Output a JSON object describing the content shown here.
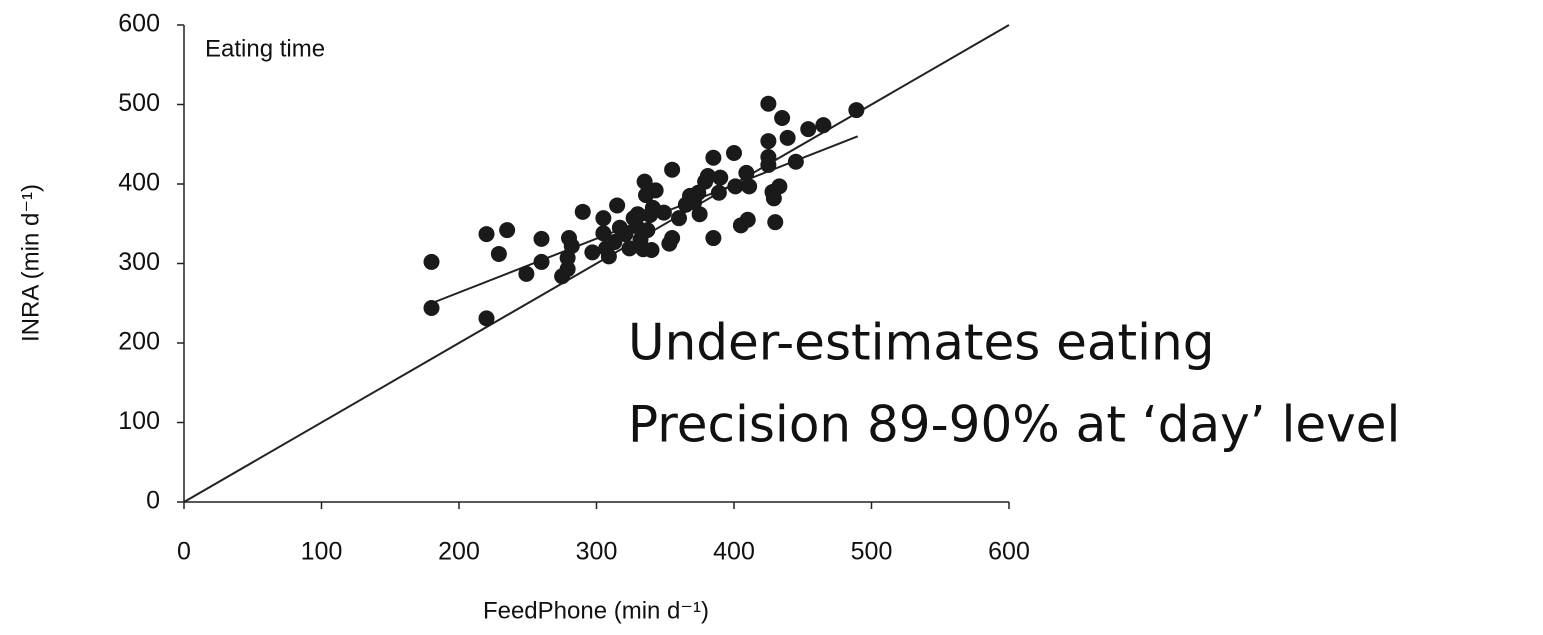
{
  "chart_data": {
    "type": "scatter",
    "title": "Eating time",
    "x_label": "FeedPhone (min d⁻¹)",
    "y_label": "INRA (min d⁻¹)",
    "annotations": [
      "Under-estimates eating",
      "Precision 89-90% at ‘day’ level"
    ],
    "color": "#1a1a1a",
    "xlim": [
      0,
      600
    ],
    "ylim": [
      0,
      600
    ],
    "xticks": [
      0,
      100,
      200,
      300,
      400,
      500,
      600
    ],
    "yticks": [
      0,
      100,
      200,
      300,
      400,
      500,
      600
    ],
    "x": [
      180,
      180,
      220,
      220,
      235,
      229,
      249,
      260,
      260,
      279,
      275,
      280,
      282,
      279,
      290,
      297,
      305,
      305,
      307,
      309,
      313,
      315,
      317,
      321,
      324,
      327,
      329,
      330,
      332,
      334,
      335,
      336,
      337,
      339,
      341,
      343,
      340,
      349,
      353,
      355,
      355,
      360,
      365,
      368,
      371,
      374,
      375,
      379,
      381,
      385,
      385,
      389,
      390,
      400,
      401,
      405,
      410,
      409,
      411,
      425,
      425,
      425,
      425,
      428,
      429,
      433,
      430,
      435,
      439,
      445,
      454,
      465,
      489
    ],
    "y": [
      302,
      244,
      337,
      231,
      342,
      312,
      287,
      331,
      302,
      293,
      284,
      332,
      322,
      307,
      365,
      314,
      357,
      338,
      319,
      309,
      327,
      373,
      345,
      337,
      319,
      357,
      347,
      362,
      330,
      318,
      403,
      386,
      342,
      361,
      370,
      392,
      317,
      364,
      325,
      418,
      332,
      357,
      374,
      385,
      377,
      389,
      362,
      403,
      410,
      433,
      332,
      389,
      408,
      439,
      397,
      348,
      355,
      414,
      397,
      501,
      454,
      434,
      424,
      390,
      382,
      397,
      352,
      483,
      458,
      428,
      469,
      474,
      493
    ],
    "lines": [
      {
        "x": [
          0,
          600
        ],
        "y": [
          0,
          600
        ]
      },
      {
        "x": [
          180,
          490
        ],
        "y": [
          250,
          460
        ]
      }
    ]
  }
}
